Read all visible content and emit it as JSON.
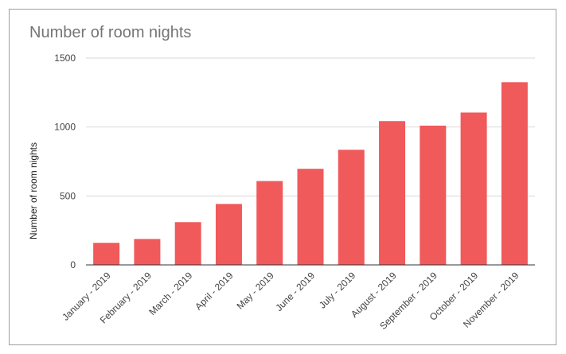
{
  "chart_data": {
    "type": "bar",
    "title": "Number of room nights",
    "xlabel": "",
    "ylabel": "Number of room nights",
    "ylim": [
      0,
      1500
    ],
    "yticks": [
      "0",
      "500",
      "1000",
      "1500"
    ],
    "grid": true,
    "legend": "none",
    "bar_color": "#f05a5b",
    "categories": [
      "January - 2019",
      "February - 2019",
      "March - 2019",
      "April - 2019",
      "May - 2019",
      "June - 2019",
      "July - 2019",
      "August - 2019",
      "September - 2019",
      "October - 2019",
      "November - 2019"
    ],
    "values": [
      160,
      188,
      310,
      442,
      608,
      697,
      835,
      1043,
      1010,
      1105,
      1325
    ]
  }
}
